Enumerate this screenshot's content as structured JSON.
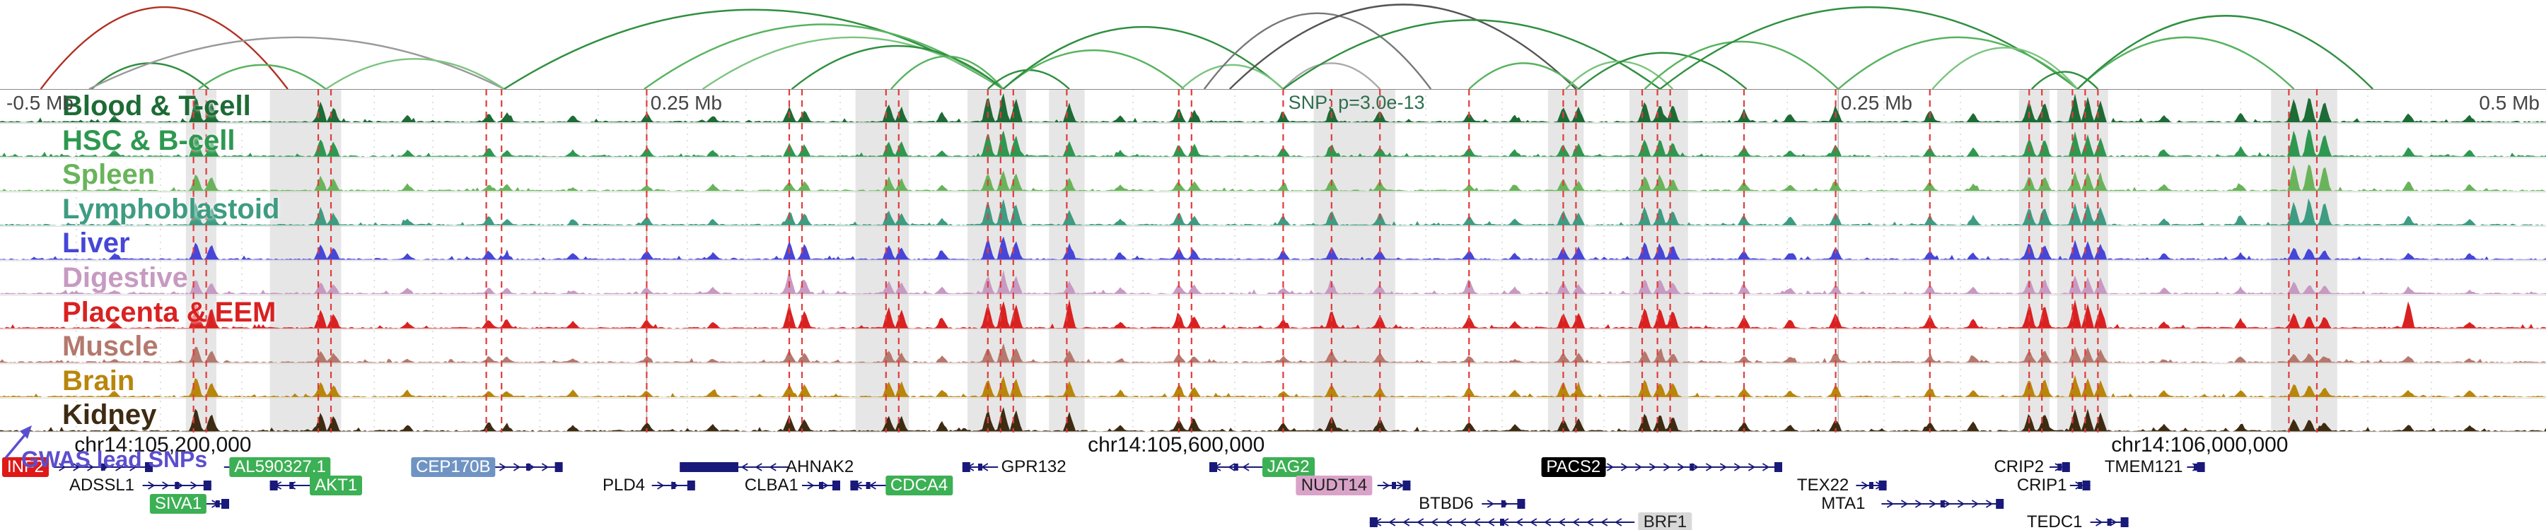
{
  "chart_data": {
    "type": "area",
    "subtype": "genome-browser-locus",
    "ruler_labels": [
      {
        "text": "-0.5 Mb",
        "x_pct": 0.25
      },
      {
        "text": "0.25 Mb",
        "x_pct": 25.55
      },
      {
        "text": "0.25 Mb",
        "x_pct": 72.3
      },
      {
        "text": "0.5 Mb",
        "x_pct": 99.75,
        "align": "right"
      }
    ],
    "ruler_gridlines_pct": [
      25.4,
      72.2
    ],
    "snp_annotation": {
      "text": "SNP: p=3.0e-13",
      "x_pct": 50.6,
      "color": "#2f6e4f"
    },
    "coordinate_labels": [
      {
        "text": "chr14:105,200,000",
        "x_pct": 6.4
      },
      {
        "text": "chr14:105,600,000",
        "x_pct": 46.2
      },
      {
        "text": "chr14:106,000,000",
        "x_pct": 86.4
      }
    ],
    "gwas_label": {
      "text": "GWAS lead SNPs",
      "color": "#5b4ece"
    },
    "peak_positions_pct": [
      4.5,
      7.7,
      8.3,
      12.6,
      13.1,
      16.0,
      19.2,
      19.9,
      22.5,
      25.4,
      28.0,
      31.0,
      31.6,
      34.9,
      35.4,
      37.0,
      38.8,
      39.4,
      39.9,
      42.0,
      44.0,
      46.3,
      46.9,
      50.4,
      52.3,
      54.2,
      57.7,
      59.5,
      61.4,
      62.0,
      64.6,
      65.2,
      65.7,
      68.5,
      70.3,
      72.1,
      75.8,
      77.5,
      79.7,
      80.3,
      81.5,
      82.0,
      82.5,
      85.0,
      88.0,
      90.1,
      90.7,
      91.3,
      94.6,
      97.0
    ],
    "tracks": [
      {
        "label": "Blood & T-cell",
        "slug": "blood-t-cell",
        "color": "#1d6b35",
        "heights": [
          0.2,
          0.9,
          0.7,
          0.7,
          0.5,
          0.2,
          0.3,
          0.3,
          0.2,
          0.3,
          0.2,
          0.5,
          0.4,
          0.6,
          0.5,
          0.3,
          0.9,
          1.0,
          0.8,
          0.6,
          0.2,
          0.5,
          0.4,
          0.3,
          0.5,
          0.4,
          0.3,
          0.2,
          0.5,
          0.5,
          0.7,
          0.6,
          0.6,
          0.4,
          0.3,
          0.5,
          0.4,
          0.3,
          0.7,
          0.7,
          0.9,
          0.8,
          0.7,
          0.2,
          0.3,
          0.8,
          0.9,
          0.7,
          0.3,
          0.2
        ]
      },
      {
        "label": "HSC & B-cell",
        "slug": "hsc-b-cell",
        "color": "#2e9850",
        "heights": [
          0.2,
          0.8,
          0.6,
          0.6,
          0.5,
          0.2,
          0.3,
          0.2,
          0.2,
          0.3,
          0.2,
          0.4,
          0.4,
          0.5,
          0.5,
          0.2,
          0.8,
          0.9,
          0.7,
          0.5,
          0.2,
          0.4,
          0.4,
          0.3,
          0.4,
          0.3,
          0.3,
          0.2,
          0.4,
          0.4,
          0.6,
          0.6,
          0.5,
          0.3,
          0.2,
          0.4,
          0.3,
          0.3,
          0.6,
          0.6,
          0.8,
          0.7,
          0.6,
          0.2,
          0.3,
          0.9,
          1.0,
          0.8,
          0.3,
          0.2
        ]
      },
      {
        "label": "Spleen",
        "slug": "spleen",
        "color": "#69b45b",
        "heights": [
          0.1,
          0.6,
          0.5,
          0.5,
          0.4,
          0.2,
          0.2,
          0.2,
          0.1,
          0.2,
          0.2,
          0.3,
          0.3,
          0.4,
          0.4,
          0.2,
          0.6,
          0.7,
          0.6,
          0.4,
          0.2,
          0.3,
          0.3,
          0.2,
          0.4,
          0.3,
          0.2,
          0.2,
          0.4,
          0.3,
          0.5,
          0.5,
          0.4,
          0.3,
          0.2,
          0.3,
          0.3,
          0.2,
          0.5,
          0.5,
          0.6,
          0.6,
          0.5,
          0.2,
          0.2,
          0.9,
          1.0,
          0.9,
          0.3,
          0.2
        ]
      },
      {
        "label": "Lymphoblastoid",
        "slug": "lymphoblastoid",
        "color": "#3d9c82",
        "heights": [
          0.2,
          0.7,
          0.6,
          0.6,
          0.4,
          0.2,
          0.3,
          0.2,
          0.2,
          0.3,
          0.2,
          0.4,
          0.4,
          0.5,
          0.4,
          0.2,
          0.8,
          0.9,
          0.7,
          0.5,
          0.2,
          0.4,
          0.3,
          0.3,
          0.5,
          0.4,
          0.3,
          0.2,
          0.5,
          0.4,
          0.6,
          0.6,
          0.5,
          0.3,
          0.3,
          0.4,
          0.3,
          0.3,
          0.6,
          0.6,
          0.7,
          0.7,
          0.6,
          0.2,
          0.3,
          0.8,
          0.9,
          0.8,
          0.3,
          0.2
        ]
      },
      {
        "label": "Liver",
        "slug": "liver",
        "color": "#4646d8",
        "heights": [
          0.2,
          0.6,
          0.5,
          0.5,
          0.4,
          0.2,
          0.3,
          0.2,
          0.2,
          0.3,
          0.2,
          0.6,
          0.5,
          0.5,
          0.4,
          0.3,
          0.7,
          0.8,
          0.6,
          0.5,
          0.2,
          0.4,
          0.3,
          0.3,
          0.4,
          0.3,
          0.3,
          0.2,
          0.4,
          0.4,
          0.6,
          0.5,
          0.5,
          0.3,
          0.2,
          0.4,
          0.3,
          0.2,
          0.6,
          0.5,
          0.6,
          0.6,
          0.5,
          0.2,
          0.2,
          0.4,
          0.4,
          0.3,
          0.2,
          0.2
        ]
      },
      {
        "label": "Digestive",
        "slug": "digestive",
        "color": "#c79ac2",
        "heights": [
          0.1,
          0.5,
          0.4,
          0.4,
          0.3,
          0.2,
          0.2,
          0.2,
          0.1,
          0.2,
          0.2,
          0.7,
          0.5,
          0.4,
          0.4,
          0.2,
          0.6,
          0.7,
          0.6,
          0.4,
          0.2,
          0.3,
          0.3,
          0.2,
          0.4,
          0.3,
          0.5,
          0.2,
          0.4,
          0.3,
          0.5,
          0.5,
          0.4,
          0.3,
          0.2,
          0.3,
          0.3,
          0.2,
          0.5,
          0.5,
          0.6,
          0.5,
          0.5,
          0.2,
          0.2,
          0.4,
          0.3,
          0.3,
          0.2,
          0.1
        ]
      },
      {
        "label": "Placenta & EEM",
        "slug": "placenta-eem",
        "color": "#d92121",
        "heights": [
          0.2,
          0.9,
          0.7,
          0.6,
          0.5,
          0.2,
          0.3,
          0.3,
          0.2,
          0.3,
          0.2,
          0.8,
          0.6,
          0.7,
          0.6,
          0.3,
          0.8,
          0.9,
          0.8,
          0.9,
          0.2,
          0.5,
          0.4,
          0.3,
          0.6,
          0.4,
          0.4,
          0.2,
          0.5,
          0.5,
          0.7,
          0.7,
          0.6,
          0.4,
          0.3,
          0.5,
          0.4,
          0.3,
          0.8,
          0.8,
          0.9,
          0.8,
          0.7,
          0.2,
          0.3,
          0.5,
          0.4,
          0.4,
          0.9,
          0.2
        ]
      },
      {
        "label": "Muscle",
        "slug": "muscle",
        "color": "#b5786d",
        "heights": [
          0.1,
          0.6,
          0.4,
          0.4,
          0.3,
          0.1,
          0.2,
          0.2,
          0.1,
          0.2,
          0.1,
          0.4,
          0.3,
          0.4,
          0.3,
          0.2,
          0.5,
          0.6,
          0.5,
          0.4,
          0.1,
          0.3,
          0.2,
          0.2,
          0.4,
          0.3,
          0.2,
          0.1,
          0.3,
          0.3,
          0.4,
          0.4,
          0.3,
          0.2,
          0.2,
          0.3,
          0.2,
          0.2,
          0.4,
          0.4,
          0.5,
          0.5,
          0.4,
          0.1,
          0.2,
          0.3,
          0.3,
          0.2,
          0.2,
          0.1
        ]
      },
      {
        "label": "Brain",
        "slug": "brain",
        "color": "#b8860b",
        "heights": [
          0.2,
          0.7,
          0.5,
          0.5,
          0.4,
          0.2,
          0.2,
          0.2,
          0.2,
          0.2,
          0.2,
          0.4,
          0.4,
          0.5,
          0.5,
          0.2,
          0.6,
          0.7,
          0.6,
          0.5,
          0.2,
          0.4,
          0.3,
          0.2,
          0.4,
          0.3,
          0.3,
          0.2,
          0.5,
          0.4,
          0.6,
          0.5,
          0.5,
          0.3,
          0.2,
          0.4,
          0.3,
          0.2,
          0.6,
          0.6,
          0.7,
          0.6,
          0.5,
          0.2,
          0.2,
          0.4,
          0.4,
          0.3,
          0.2,
          0.2
        ]
      },
      {
        "label": "Kidney",
        "slug": "kidney",
        "color": "#3d2b12",
        "heights": [
          0.2,
          0.8,
          0.6,
          0.6,
          0.5,
          0.2,
          0.3,
          0.2,
          0.2,
          0.3,
          0.2,
          0.5,
          0.4,
          0.5,
          0.5,
          0.3,
          0.7,
          0.8,
          0.7,
          0.6,
          0.2,
          0.4,
          0.4,
          0.3,
          0.5,
          0.4,
          0.3,
          0.2,
          0.4,
          0.4,
          0.6,
          0.6,
          0.5,
          0.3,
          0.2,
          0.4,
          0.3,
          0.3,
          0.6,
          0.6,
          0.7,
          0.7,
          0.6,
          0.2,
          0.2,
          0.4,
          0.4,
          0.3,
          0.2,
          0.2
        ]
      }
    ],
    "snp_lines_pct": [
      7.6,
      8.1,
      12.5,
      13.0,
      19.1,
      19.7,
      25.4,
      31.0,
      31.5,
      34.8,
      35.3,
      38.8,
      39.3,
      39.8,
      41.9,
      46.3,
      46.8,
      50.4,
      52.3,
      54.2,
      57.7,
      61.4,
      61.9,
      64.5,
      65.1,
      65.6,
      68.5,
      72.1,
      75.8,
      79.7,
      80.2,
      81.4,
      81.9,
      82.4,
      89.9,
      91.0
    ],
    "gray_guides_pct": [
      3.0,
      6.3,
      9.5,
      14.7,
      17.0,
      21.2,
      23.5,
      27.0,
      29.3,
      33.0,
      36.5,
      44.5,
      48.5,
      56.0,
      59.0,
      63.0,
      67.0,
      70.2,
      74.0,
      77.0,
      84.0,
      86.5,
      88.0,
      93.0,
      95.5
    ],
    "highlight_bands": [
      {
        "x": 7.3,
        "w": 1.2
      },
      {
        "x": 10.6,
        "w": 2.8
      },
      {
        "x": 33.6,
        "w": 2.1
      },
      {
        "x": 38.0,
        "w": 2.3
      },
      {
        "x": 41.2,
        "w": 1.4
      },
      {
        "x": 51.6,
        "w": 3.2
      },
      {
        "x": 60.8,
        "w": 1.4
      },
      {
        "x": 64.0,
        "w": 2.3
      },
      {
        "x": 79.3,
        "w": 1.2
      },
      {
        "x": 80.8,
        "w": 2.0
      },
      {
        "x": 89.2,
        "w": 2.6
      }
    ],
    "arcs": [
      {
        "x1": 1.6,
        "x2": 11.3,
        "h": 0.95,
        "color": "#b03022"
      },
      {
        "x1": 3.6,
        "x2": 8.2,
        "h": 0.3,
        "color": "#2f8f3f"
      },
      {
        "x1": 3.5,
        "x2": 19.8,
        "h": 0.6,
        "color": "#9a9a9a"
      },
      {
        "x1": 7.8,
        "x2": 12.8,
        "h": 0.28,
        "color": "#57b35f"
      },
      {
        "x1": 12.8,
        "x2": 19.8,
        "h": 0.35,
        "color": "#7cc47f"
      },
      {
        "x1": 19.8,
        "x2": 39.4,
        "h": 0.92,
        "color": "#2f8f3f"
      },
      {
        "x1": 25.3,
        "x2": 39.4,
        "h": 0.75,
        "color": "#57b35f"
      },
      {
        "x1": 27.6,
        "x2": 39.4,
        "h": 0.6,
        "color": "#7cc47f"
      },
      {
        "x1": 31.1,
        "x2": 39.4,
        "h": 0.5,
        "color": "#2f8f3f"
      },
      {
        "x1": 35.0,
        "x2": 39.4,
        "h": 0.38,
        "color": "#57b35f"
      },
      {
        "x1": 38.8,
        "x2": 42.0,
        "h": 0.22,
        "color": "#2f8f3f"
      },
      {
        "x1": 39.4,
        "x2": 46.5,
        "h": 0.45,
        "color": "#57b35f"
      },
      {
        "x1": 39.4,
        "x2": 50.4,
        "h": 0.72,
        "color": "#2f8f3f"
      },
      {
        "x1": 46.4,
        "x2": 50.4,
        "h": 0.28,
        "color": "#7cc47f"
      },
      {
        "x1": 47.3,
        "x2": 56.2,
        "h": 0.88,
        "color": "#777777"
      },
      {
        "x1": 48.3,
        "x2": 61.9,
        "h": 0.98,
        "color": "#555555"
      },
      {
        "x1": 50.4,
        "x2": 54.2,
        "h": 0.3,
        "color": "#aaaaaa"
      },
      {
        "x1": 50.4,
        "x2": 65.2,
        "h": 0.8,
        "color": "#2f8f3f"
      },
      {
        "x1": 57.7,
        "x2": 62.0,
        "h": 0.3,
        "color": "#57b35f"
      },
      {
        "x1": 61.5,
        "x2": 65.7,
        "h": 0.32,
        "color": "#7cc47f"
      },
      {
        "x1": 62.0,
        "x2": 68.6,
        "h": 0.42,
        "color": "#2f8f3f"
      },
      {
        "x1": 64.6,
        "x2": 72.2,
        "h": 0.55,
        "color": "#57b35f"
      },
      {
        "x1": 65.2,
        "x2": 81.6,
        "h": 0.95,
        "color": "#2f8f3f"
      },
      {
        "x1": 72.2,
        "x2": 81.6,
        "h": 0.6,
        "color": "#57b35f"
      },
      {
        "x1": 75.9,
        "x2": 81.6,
        "h": 0.48,
        "color": "#7cc47f"
      },
      {
        "x1": 79.8,
        "x2": 82.4,
        "h": 0.2,
        "color": "#2f8f3f"
      },
      {
        "x1": 81.6,
        "x2": 90.1,
        "h": 0.6,
        "color": "#57b35f"
      },
      {
        "x1": 81.6,
        "x2": 93.2,
        "h": 0.85,
        "color": "#2f8f3f"
      }
    ],
    "genes": {
      "color": "#19197a",
      "items": [
        {
          "name": "INF2",
          "row": 0,
          "label_x_pct": 1.0,
          "bg": "#e01818",
          "fg": "#ffffff",
          "body": {
            "x1": 2.1,
            "x2": 6.0,
            "dir": "right"
          }
        },
        {
          "name": "ADSSL1",
          "row": 1,
          "label_x_pct": 4.0,
          "body": {
            "x1": 5.6,
            "x2": 8.3,
            "dir": "right"
          }
        },
        {
          "name": "SIVA1",
          "row": 2,
          "label_x_pct": 7.0,
          "bg": "#3cb054",
          "fg": "#ffffff",
          "body": {
            "x1": 8.1,
            "x2": 9.0,
            "dir": "right"
          }
        },
        {
          "name": "AL590327.1",
          "row": 0,
          "label_x_pct": 11.0,
          "bg": "#3cb054",
          "fg": "#ffffff",
          "body": {
            "x1": 8.8,
            "x2": 9.4,
            "dir": "right"
          }
        },
        {
          "name": "AKT1",
          "row": 1,
          "label_x_pct": 13.2,
          "bg": "#3cb054",
          "fg": "#ffffff",
          "body": {
            "x1": 10.6,
            "x2": 12.3,
            "dir": "left"
          }
        },
        {
          "name": "CEP170B",
          "row": 0,
          "label_x_pct": 17.8,
          "bg": "#6f94c4",
          "fg": "#ffffff",
          "body": {
            "x1": 19.4,
            "x2": 22.1,
            "dir": "right"
          }
        },
        {
          "name": "PLD4",
          "row": 1,
          "label_x_pct": 24.5,
          "body": {
            "x1": 25.6,
            "x2": 27.3,
            "dir": "right"
          }
        },
        {
          "name": "AHNAK2",
          "row": 0,
          "label_x_pct": 32.2,
          "body": {
            "x1": 26.7,
            "x2": 31.0,
            "dir": "left",
            "block": [
              26.7,
              29.0
            ]
          }
        },
        {
          "name": "CLBA1",
          "row": 1,
          "label_x_pct": 30.3,
          "body": {
            "x1": 31.5,
            "x2": 33.0,
            "dir": "right"
          }
        },
        {
          "name": "CDCA4",
          "row": 1,
          "label_x_pct": 36.1,
          "bg": "#3cb054",
          "fg": "#ffffff",
          "body": {
            "x1": 33.4,
            "x2": 34.8,
            "dir": "left"
          }
        },
        {
          "name": "GPR132",
          "row": 0,
          "label_x_pct": 40.6,
          "body": {
            "x1": 37.8,
            "x2": 39.2,
            "dir": "left"
          }
        },
        {
          "name": "JAG2",
          "row": 0,
          "label_x_pct": 50.6,
          "bg": "#3cb054",
          "fg": "#ffffff",
          "body": {
            "x1": 47.5,
            "x2": 49.6,
            "dir": "left"
          }
        },
        {
          "name": "NUDT14",
          "row": 1,
          "label_x_pct": 52.4,
          "bg": "#d9a3c9",
          "fg": "#222222",
          "body": {
            "x1": 54.1,
            "x2": 55.4,
            "dir": "right"
          }
        },
        {
          "name": "BTBD6",
          "row": 2,
          "label_x_pct": 56.8,
          "body": {
            "x1": 58.2,
            "x2": 59.9,
            "dir": "right"
          }
        },
        {
          "name": "BRF1",
          "row": 3,
          "label_x_pct": 65.4,
          "bg": "#d8d8d8",
          "fg": "#222222",
          "body": {
            "x1": 53.8,
            "x2": 64.2,
            "dir": "left"
          }
        },
        {
          "name": "PACS2",
          "row": 0,
          "label_x_pct": 61.8,
          "bg": "#000000",
          "fg": "#ffffff",
          "body": {
            "x1": 62.9,
            "x2": 70.0,
            "dir": "right"
          }
        },
        {
          "name": "TEX22",
          "row": 1,
          "label_x_pct": 71.6,
          "body": {
            "x1": 72.9,
            "x2": 74.1,
            "dir": "right"
          }
        },
        {
          "name": "MTA1",
          "row": 2,
          "label_x_pct": 72.4,
          "body": {
            "x1": 73.9,
            "x2": 78.7,
            "dir": "right"
          }
        },
        {
          "name": "CRIP2",
          "row": 0,
          "label_x_pct": 79.3,
          "body": {
            "x1": 80.5,
            "x2": 81.3,
            "dir": "right"
          }
        },
        {
          "name": "CRIP1",
          "row": 1,
          "label_x_pct": 80.2,
          "body": {
            "x1": 81.3,
            "x2": 82.1,
            "dir": "right"
          }
        },
        {
          "name": "TEDC1",
          "row": 3,
          "label_x_pct": 80.7,
          "body": {
            "x1": 82.1,
            "x2": 83.6,
            "dir": "right"
          }
        },
        {
          "name": "TMEM121",
          "row": 0,
          "label_x_pct": 84.2,
          "body": {
            "x1": 85.9,
            "x2": 86.6,
            "dir": "right"
          }
        }
      ]
    }
  }
}
